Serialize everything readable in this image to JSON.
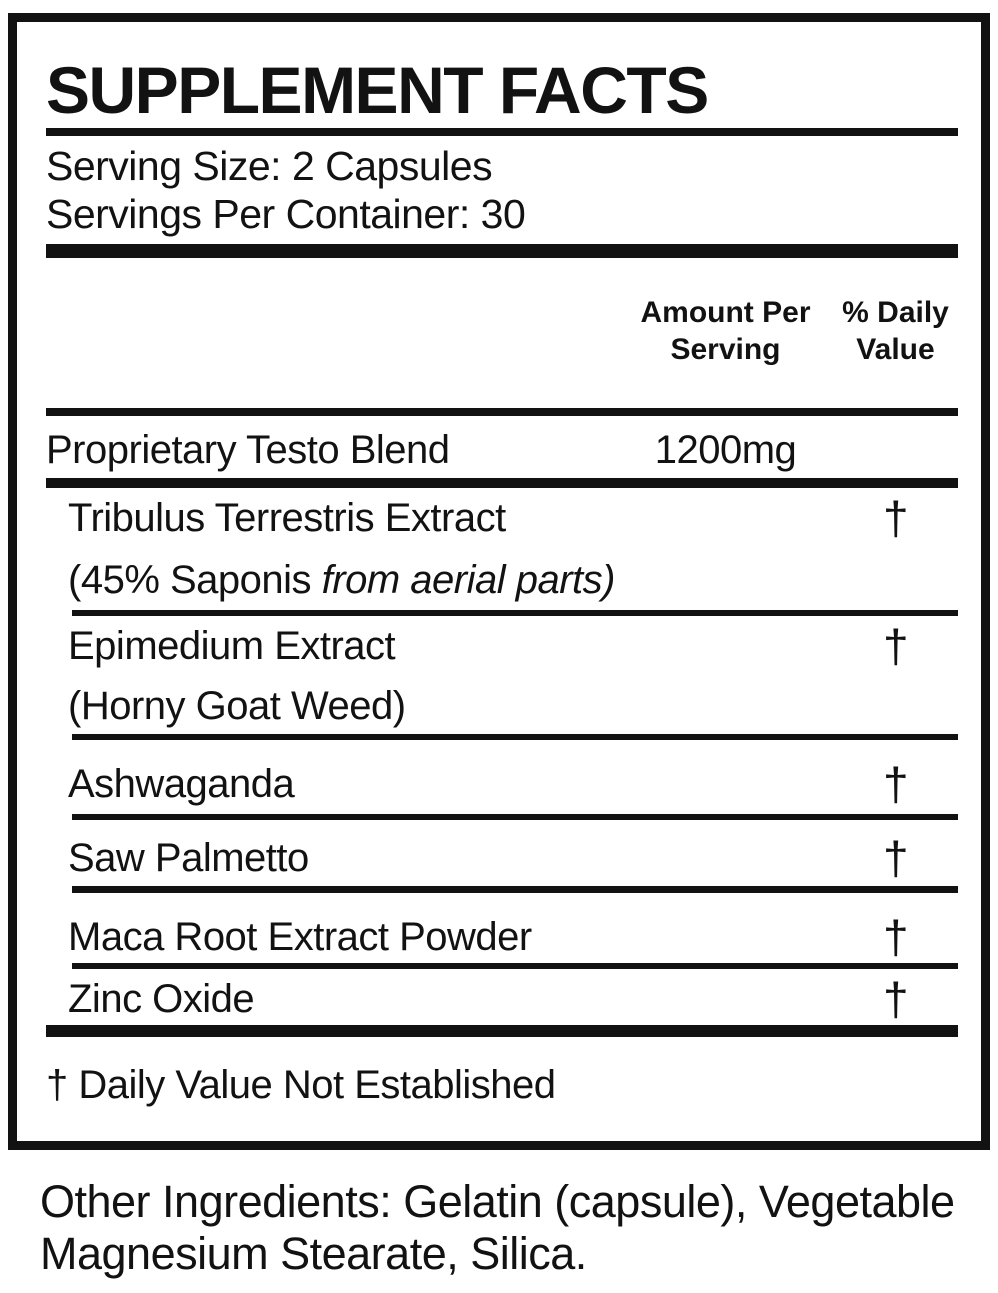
{
  "panel": {
    "title": "SUPPLEMENT FACTS",
    "serving_size": "Serving Size: 2 Capsules",
    "servings_per_container": "Servings Per Container: 30",
    "columns": {
      "amount": "Amount Per Serving",
      "daily_value": "% Daily Value"
    },
    "blend": {
      "name": "Proprietary Testo Blend",
      "amount": "1200mg"
    },
    "ingredients": [
      {
        "name": "Tribulus Terrestris Extract",
        "detail": "(45% Saponis ",
        "detail_italic": "from aerial parts)",
        "daily_value": "†"
      },
      {
        "name": "Epimedium Extract",
        "detail": "(Horny Goat Weed)",
        "detail_italic": "",
        "daily_value": "†"
      },
      {
        "name": "Ashwaganda",
        "daily_value": "†"
      },
      {
        "name": "Saw Palmetto",
        "daily_value": "†"
      },
      {
        "name": "Maca Root Extract Powder",
        "daily_value": "†"
      },
      {
        "name": "Zinc Oxide",
        "daily_value": "†"
      }
    ],
    "footnote": "† Daily Value Not Established"
  },
  "other_ingredients": {
    "line1": "Other Ingredients: Gelatin (capsule), Vegetable",
    "line2": "Magnesium Stearate, Silica."
  },
  "colors": {
    "ink": "#121212",
    "background": "#ffffff"
  }
}
